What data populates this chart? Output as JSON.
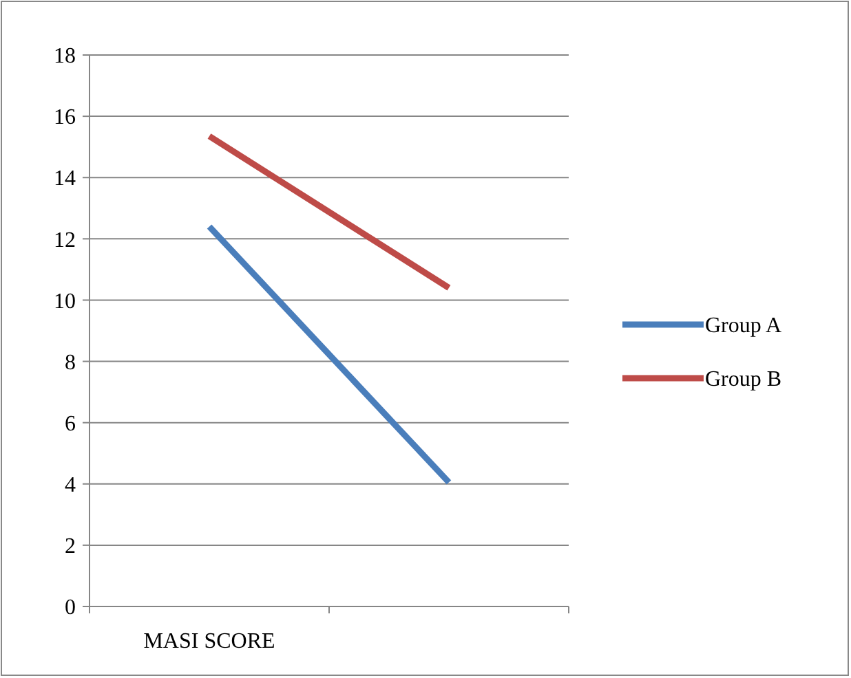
{
  "chart_data": {
    "type": "line",
    "categories": [
      "MASI SCORE",
      null
    ],
    "series": [
      {
        "name": "Group A",
        "color": "#4a7ebb",
        "values": [
          12.4,
          4.05
        ]
      },
      {
        "name": "Group B",
        "color": "#be4b48",
        "values": [
          15.35,
          10.4
        ]
      }
    ],
    "ylim": [
      0,
      18
    ],
    "yticks": [
      0,
      2,
      4,
      6,
      8,
      10,
      12,
      14,
      16,
      18
    ],
    "grid": "y",
    "legend": "right",
    "marker": "none",
    "line_style": "solid"
  }
}
